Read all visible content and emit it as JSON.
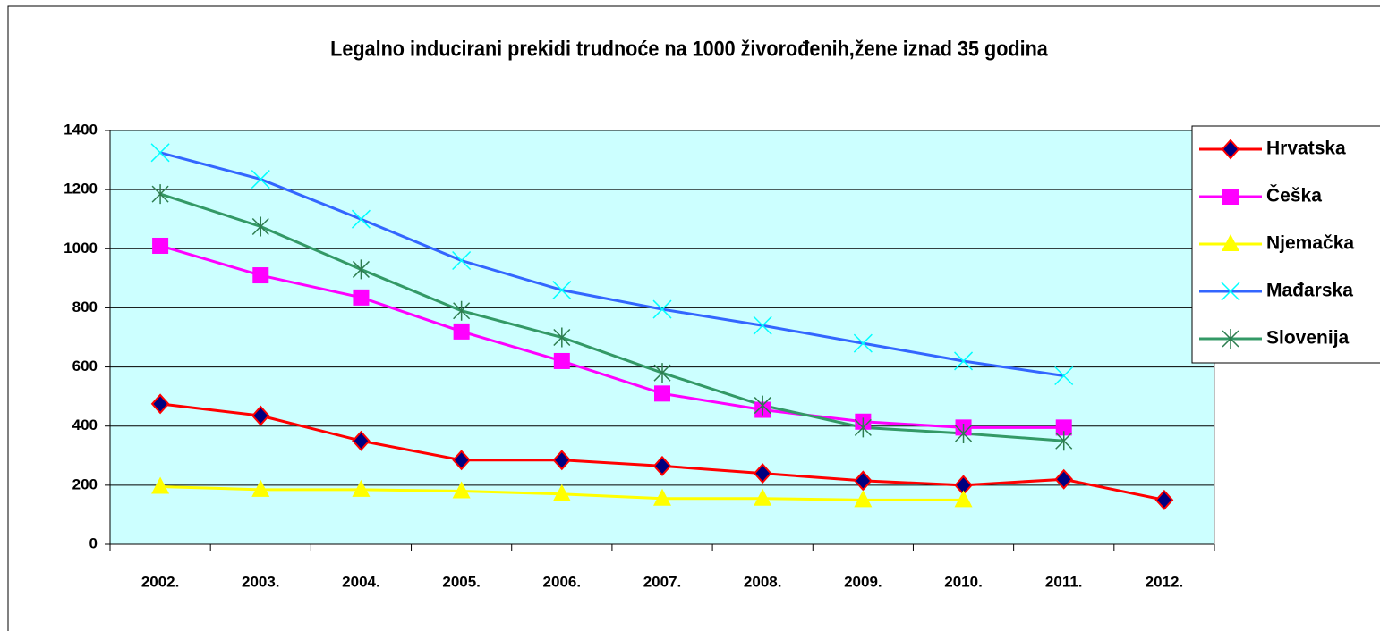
{
  "chart_data": {
    "type": "line",
    "title": "Legalno inducirani prekidi trudnoće na 1000 živorođenih,žene iznad 35 godina",
    "categories": [
      "2002.",
      "2003.",
      "2004.",
      "2005.",
      "2006.",
      "2007.",
      "2008.",
      "2009.",
      "2010.",
      "2011.",
      "2012."
    ],
    "series": [
      {
        "name": "Hrvatska",
        "color": "#ff0000",
        "marker": "diamond",
        "marker_color": "#000080",
        "values": [
          475,
          435,
          350,
          285,
          285,
          265,
          240,
          215,
          200,
          220,
          150
        ]
      },
      {
        "name": "Češka",
        "color": "#ff00ff",
        "marker": "square",
        "marker_color": "#ff00ff",
        "values": [
          1010,
          910,
          835,
          720,
          620,
          510,
          455,
          415,
          395,
          395,
          null
        ]
      },
      {
        "name": "Njemačka",
        "color": "#ffff00",
        "marker": "triangle",
        "marker_color": "#ffff00",
        "values": [
          195,
          185,
          185,
          180,
          170,
          155,
          155,
          150,
          150,
          null,
          null
        ]
      },
      {
        "name": "Mađarska",
        "color": "#3366ff",
        "marker": "x",
        "marker_color": "#00ffff",
        "values": [
          1325,
          1235,
          1100,
          960,
          860,
          795,
          740,
          680,
          620,
          570,
          null
        ]
      },
      {
        "name": "Slovenija",
        "color": "#339966",
        "marker": "star",
        "marker_color": "#2e7d4f",
        "values": [
          1185,
          1075,
          930,
          790,
          700,
          580,
          470,
          395,
          375,
          350,
          null
        ]
      }
    ],
    "ylim": [
      0,
      1400
    ],
    "yticks": [
      0,
      200,
      400,
      600,
      800,
      1000,
      1200,
      1400
    ],
    "grid": true,
    "legend": "right",
    "plot_background": "#ccffff"
  }
}
